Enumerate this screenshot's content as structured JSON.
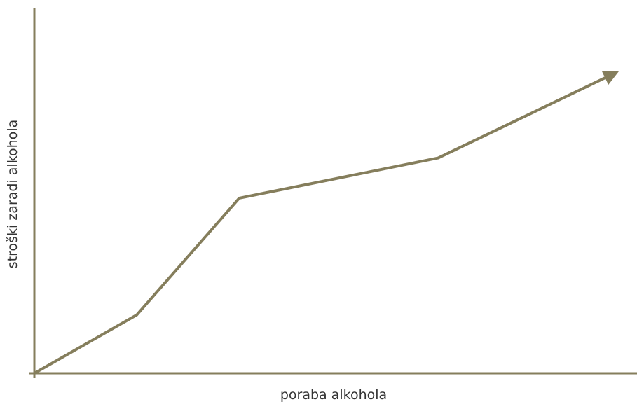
{
  "colors": {
    "line": "#857e5c",
    "axis": "#857e5c",
    "text": "#333333"
  },
  "chart_data": {
    "type": "line",
    "title": "",
    "xlabel": "poraba alkohola",
    "ylabel": "stroški zaradi alkohola",
    "grid": false,
    "legend": "none",
    "xlim": [
      0,
      10
    ],
    "ylim": [
      0,
      10
    ],
    "series": [
      {
        "points": [
          {
            "x": 0,
            "y": 0
          },
          {
            "x": 1.7,
            "y": 1.6
          },
          {
            "x": 3.4,
            "y": 4.8
          },
          {
            "x": 6.7,
            "y": 5.9
          },
          {
            "x": 9.6,
            "y": 8.2
          }
        ],
        "end_marker": "arrow"
      }
    ]
  }
}
